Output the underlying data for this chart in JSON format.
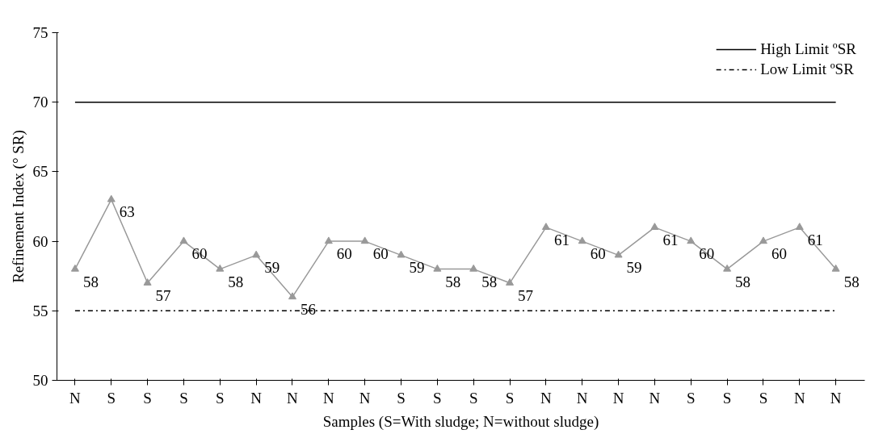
{
  "chart_data": {
    "type": "line",
    "ylabel": "Refinement Index (° SR)",
    "xlabel": "Samples (S=With sludge; N=without sludge)",
    "categories": [
      "N",
      "S",
      "S",
      "S",
      "S",
      "N",
      "N",
      "N",
      "N",
      "S",
      "S",
      "S",
      "S",
      "N",
      "N",
      "N",
      "N",
      "S",
      "S",
      "S",
      "N",
      "N"
    ],
    "ylim": [
      50,
      75
    ],
    "yticks": [
      50,
      55,
      60,
      65,
      70,
      75
    ],
    "grid": false,
    "legend": "top right",
    "marker": "triangle",
    "data_labels": true,
    "series": [
      {
        "color": "#999999",
        "values": [
          58,
          63,
          57,
          60,
          58,
          59,
          56,
          60,
          60,
          59,
          58,
          58,
          57,
          61,
          60,
          59,
          61,
          60,
          58,
          60,
          61,
          58
        ]
      },
      {
        "name": "High Limit ºSR",
        "color": "#000000",
        "marker": "none",
        "line_style": "solid",
        "data_labels": false,
        "values": [
          70,
          70,
          70,
          70,
          70,
          70,
          70,
          70,
          70,
          70,
          70,
          70,
          70,
          70,
          70,
          70,
          70,
          70,
          70,
          70,
          70,
          70
        ]
      },
      {
        "name": "Low Limit ºSR",
        "color": "#000000",
        "marker": "none",
        "line_style": "dashdot",
        "data_labels": false,
        "values": [
          55,
          55,
          55,
          55,
          55,
          55,
          55,
          55,
          55,
          55,
          55,
          55,
          55,
          55,
          55,
          55,
          55,
          55,
          55,
          55,
          55,
          55
        ]
      }
    ]
  }
}
